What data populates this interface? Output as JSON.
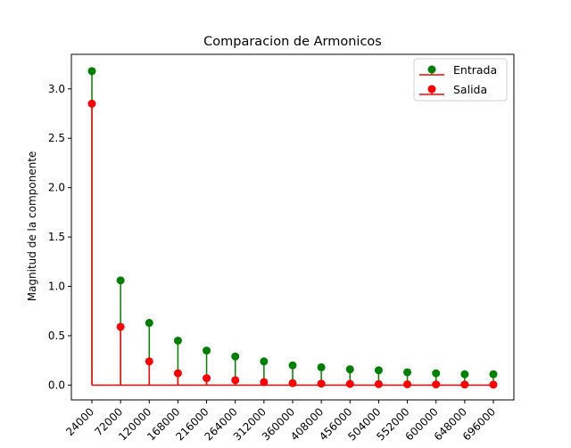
{
  "chart_data": {
    "type": "stem",
    "title": "Comparacion de Armonicos",
    "xlabel": "",
    "ylabel": "Magnitud de la componente",
    "categories": [
      "24000",
      "72000",
      "120000",
      "168000",
      "216000",
      "264000",
      "312000",
      "360000",
      "408000",
      "456000",
      "504000",
      "552000",
      "600000",
      "648000",
      "696000"
    ],
    "yticks": [
      "0.0",
      "0.5",
      "1.0",
      "1.5",
      "2.0",
      "2.5",
      "3.0"
    ],
    "ylim": [
      -0.15,
      3.35
    ],
    "grid": false,
    "legend_position": "top-right",
    "series": [
      {
        "name": "Entrada",
        "color": "#008000",
        "values": [
          3.18,
          1.06,
          0.63,
          0.45,
          0.35,
          0.29,
          0.24,
          0.2,
          0.18,
          0.16,
          0.15,
          0.13,
          0.12,
          0.11,
          0.11
        ]
      },
      {
        "name": "Salida",
        "color": "#ff0000",
        "values": [
          2.85,
          0.59,
          0.24,
          0.12,
          0.07,
          0.05,
          0.03,
          0.02,
          0.015,
          0.012,
          0.01,
          0.008,
          0.007,
          0.006,
          0.005
        ]
      }
    ],
    "baseline": 0
  }
}
